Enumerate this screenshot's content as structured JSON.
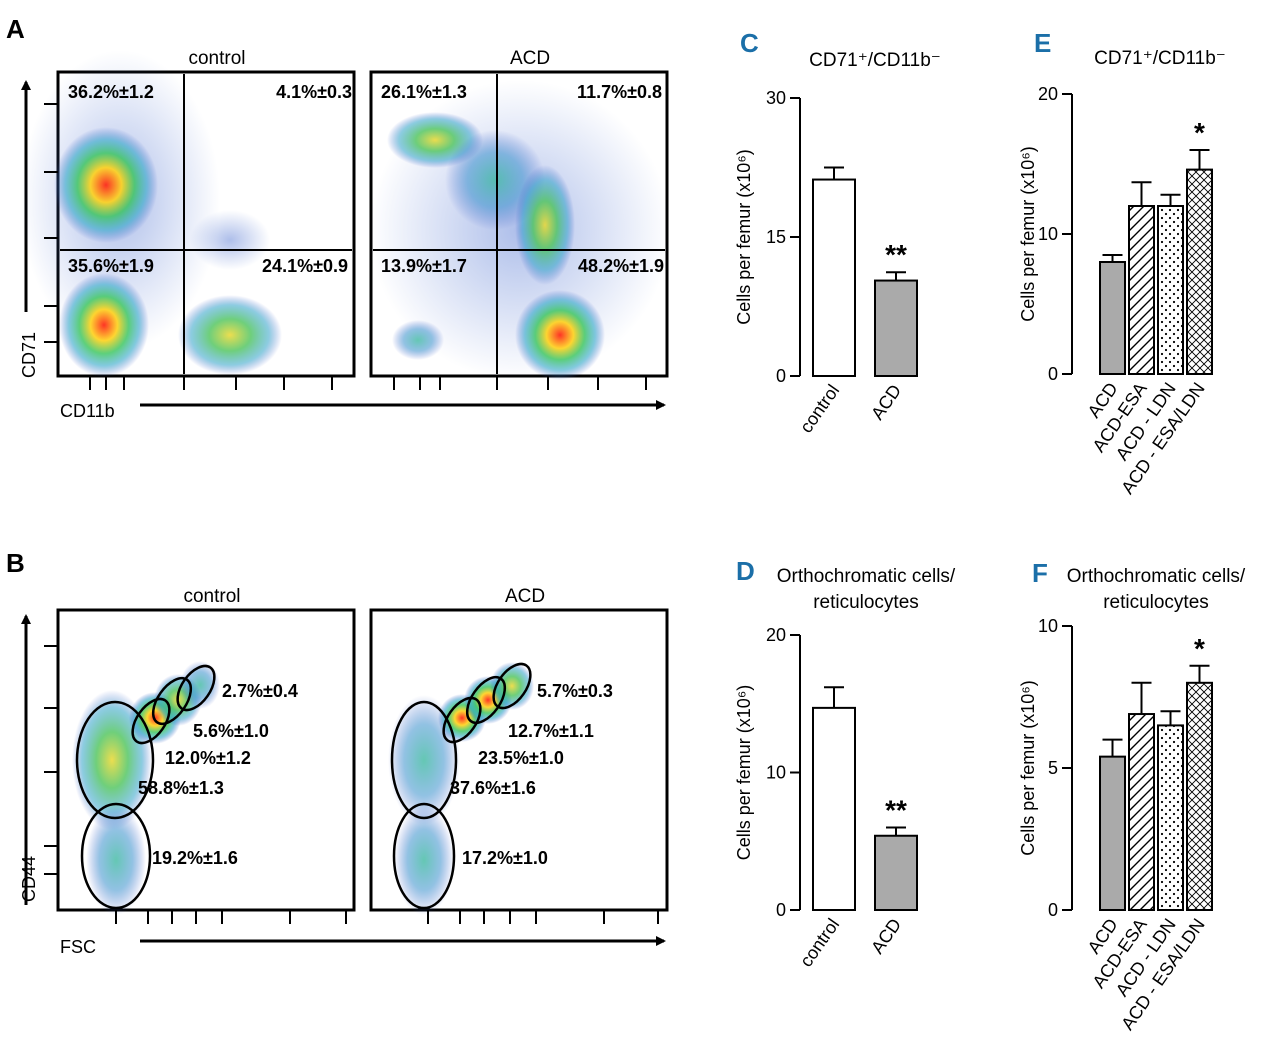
{
  "colors": {
    "panel_letter": "#1b6fa8",
    "bar_control": "#ffffff",
    "bar_acd": "#aaaaaa",
    "bar_other": "#ffffff",
    "stroke": "#000000"
  },
  "panels": {
    "A": {
      "letter": "A",
      "x_label": "CD11b",
      "y_label": "CD71",
      "plots": [
        {
          "title": "control",
          "quadrants": {
            "ul": "36.2%±1.2",
            "ur": "4.1%±0.3",
            "ll": "35.6%±1.9",
            "lr": "24.1%±0.9"
          }
        },
        {
          "title": "ACD",
          "quadrants": {
            "ul": "26.1%±1.3",
            "ur": "11.7%±0.8",
            "ll": "13.9%±1.7",
            "lr": "48.2%±1.9"
          }
        }
      ]
    },
    "B": {
      "letter": "B",
      "x_label": "FSC",
      "y_label": "CD44",
      "plots": [
        {
          "title": "control",
          "gates": [
            "2.7%±0.4",
            "5.6%±1.0",
            "12.0%±1.2",
            "58.8%±1.3",
            "19.2%±1.6"
          ]
        },
        {
          "title": "ACD",
          "gates": [
            "5.7%±0.3",
            "12.7%±1.1",
            "23.5%±1.0",
            "37.6%±1.6",
            "17.2%±1.0"
          ]
        }
      ]
    }
  },
  "chart_data": [
    {
      "id": "C",
      "letter": "C",
      "type": "bar",
      "title": "CD71⁺/CD11b⁻",
      "ylabel": "Cells per femur (x10⁶)",
      "categories": [
        "control",
        "ACD"
      ],
      "values": [
        21.2,
        10.3
      ],
      "errors": [
        1.3,
        0.9
      ],
      "fills": [
        "white",
        "gray"
      ],
      "significance": [
        "",
        "**"
      ],
      "ylim": [
        0,
        30
      ],
      "yticks": [
        0,
        15,
        30
      ]
    },
    {
      "id": "D",
      "letter": "D",
      "type": "bar",
      "title": [
        "Orthochromatic cells/",
        "reticulocytes"
      ],
      "ylabel": "Cells per femur (x10⁶)",
      "categories": [
        "control",
        "ACD"
      ],
      "values": [
        14.7,
        5.4
      ],
      "errors": [
        1.5,
        0.6
      ],
      "fills": [
        "white",
        "gray"
      ],
      "significance": [
        "",
        "**"
      ],
      "ylim": [
        0,
        20
      ],
      "yticks": [
        0,
        10,
        20
      ]
    },
    {
      "id": "E",
      "letter": "E",
      "type": "bar",
      "title": "CD71⁺/CD11b⁻",
      "ylabel": "Cells per femur (x10⁶)",
      "categories": [
        "ACD",
        "ACD-ESA",
        "ACD - LDN",
        "ACD - ESA/LDN"
      ],
      "values": [
        8.0,
        12.0,
        12.0,
        14.6
      ],
      "errors": [
        0.5,
        1.7,
        0.8,
        1.4
      ],
      "fills": [
        "gray",
        "hatch",
        "dots",
        "crosshatch"
      ],
      "significance": [
        "",
        "",
        "",
        "*"
      ],
      "ylim": [
        0,
        20
      ],
      "yticks": [
        0,
        10,
        20
      ]
    },
    {
      "id": "F",
      "letter": "F",
      "type": "bar",
      "title": [
        "Orthochromatic cells/",
        "reticulocytes"
      ],
      "ylabel": "Cells per femur (x10⁶)",
      "categories": [
        "ACD",
        "ACD-ESA",
        "ACD - LDN",
        "ACD - ESA/LDN"
      ],
      "values": [
        5.4,
        6.9,
        6.5,
        8.0
      ],
      "errors": [
        0.6,
        1.1,
        0.5,
        0.6
      ],
      "fills": [
        "gray",
        "hatch",
        "dots",
        "crosshatch"
      ],
      "significance": [
        "",
        "",
        "",
        "*"
      ],
      "ylim": [
        0,
        10
      ],
      "yticks": [
        0,
        5,
        10
      ]
    }
  ]
}
